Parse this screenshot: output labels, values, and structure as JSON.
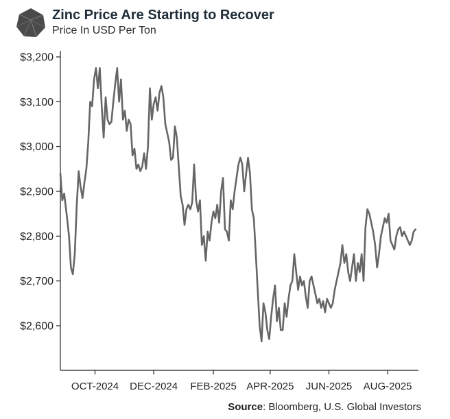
{
  "header": {
    "title": "Zinc Price Are Starting to Recover",
    "subtitle": "Price In USD Per Ton"
  },
  "footer": {
    "source_label": "Source",
    "source_text": ": Bloomberg, U.S. Global Investors"
  },
  "colors": {
    "line": "#666666",
    "axis": "#222222",
    "text": "#222222",
    "title": "#1f2d3a",
    "logo": "#4a4a4a"
  },
  "chart_data": {
    "type": "line",
    "title": "Zinc Price Are Starting to Recover",
    "subtitle": "Price In USD Per Ton",
    "xlabel": "",
    "ylabel": "",
    "ylim": [
      2500,
      3200
    ],
    "xlim": [
      "2024-08-26",
      "2025-09-02"
    ],
    "grid": false,
    "legend": "none",
    "y_ticks": [
      {
        "value": 3200,
        "label": "$3,200"
      },
      {
        "value": 3100,
        "label": "$3,100"
      },
      {
        "value": 3000,
        "label": "$3,000"
      },
      {
        "value": 2900,
        "label": "$2,900"
      },
      {
        "value": 2800,
        "label": "$2,800"
      },
      {
        "value": 2700,
        "label": "$2,700"
      },
      {
        "value": 2600,
        "label": "$2,600"
      }
    ],
    "x_ticks": [
      {
        "date": "2024-10-01",
        "label": "OCT-2024"
      },
      {
        "date": "2024-12-01",
        "label": "DEC-2024"
      },
      {
        "date": "2025-02-01",
        "label": "FEB-2025"
      },
      {
        "date": "2025-04-01",
        "label": "APR-2025"
      },
      {
        "date": "2025-06-01",
        "label": "JUN-2025"
      },
      {
        "date": "2025-08-01",
        "label": "AUG-2025"
      }
    ],
    "series": [
      {
        "name": "",
        "x": [
          "2024-08-26",
          "2024-08-28",
          "2024-08-30",
          "2024-09-02",
          "2024-09-04",
          "2024-09-06",
          "2024-09-08",
          "2024-09-10",
          "2024-09-12",
          "2024-09-14",
          "2024-09-16",
          "2024-09-18",
          "2024-09-20",
          "2024-09-22",
          "2024-09-24",
          "2024-09-26",
          "2024-09-28",
          "2024-09-30",
          "2024-10-02",
          "2024-10-04",
          "2024-10-06",
          "2024-10-08",
          "2024-10-10",
          "2024-10-12",
          "2024-10-14",
          "2024-10-16",
          "2024-10-18",
          "2024-10-20",
          "2024-10-22",
          "2024-10-24",
          "2024-10-26",
          "2024-10-28",
          "2024-10-30",
          "2024-11-01",
          "2024-11-03",
          "2024-11-05",
          "2024-11-07",
          "2024-11-09",
          "2024-11-11",
          "2024-11-13",
          "2024-11-15",
          "2024-11-17",
          "2024-11-19",
          "2024-11-21",
          "2024-11-23",
          "2024-11-25",
          "2024-11-27",
          "2024-11-29",
          "2024-12-01",
          "2024-12-03",
          "2024-12-05",
          "2024-12-07",
          "2024-12-09",
          "2024-12-11",
          "2024-12-13",
          "2024-12-15",
          "2024-12-17",
          "2024-12-19",
          "2024-12-21",
          "2024-12-23",
          "2024-12-25",
          "2024-12-27",
          "2024-12-29",
          "2024-12-31",
          "2025-01-02",
          "2025-01-04",
          "2025-01-06",
          "2025-01-08",
          "2025-01-10",
          "2025-01-12",
          "2025-01-14",
          "2025-01-16",
          "2025-01-18",
          "2025-01-20",
          "2025-01-22",
          "2025-01-24",
          "2025-01-26",
          "2025-01-28",
          "2025-01-30",
          "2025-02-01",
          "2025-02-03",
          "2025-02-05",
          "2025-02-07",
          "2025-02-09",
          "2025-02-11",
          "2025-02-13",
          "2025-02-15",
          "2025-02-17",
          "2025-02-19",
          "2025-02-21",
          "2025-02-23",
          "2025-02-25",
          "2025-02-27",
          "2025-03-01",
          "2025-03-03",
          "2025-03-05",
          "2025-03-07",
          "2025-03-09",
          "2025-03-11",
          "2025-03-13",
          "2025-03-15",
          "2025-03-17",
          "2025-03-19",
          "2025-03-21",
          "2025-03-23",
          "2025-03-25",
          "2025-03-27",
          "2025-03-29",
          "2025-03-31",
          "2025-04-02",
          "2025-04-04",
          "2025-04-06",
          "2025-04-08",
          "2025-04-10",
          "2025-04-12",
          "2025-04-14",
          "2025-04-16",
          "2025-04-18",
          "2025-04-20",
          "2025-04-22",
          "2025-04-24",
          "2025-04-26",
          "2025-04-28",
          "2025-04-30",
          "2025-05-02",
          "2025-05-04",
          "2025-05-06",
          "2025-05-08",
          "2025-05-10",
          "2025-05-12",
          "2025-05-14",
          "2025-05-16",
          "2025-05-18",
          "2025-05-20",
          "2025-05-22",
          "2025-05-24",
          "2025-05-26",
          "2025-05-28",
          "2025-05-30",
          "2025-06-01",
          "2025-06-03",
          "2025-06-05",
          "2025-06-07",
          "2025-06-09",
          "2025-06-11",
          "2025-06-13",
          "2025-06-15",
          "2025-06-17",
          "2025-06-19",
          "2025-06-21",
          "2025-06-23",
          "2025-06-25",
          "2025-06-27",
          "2025-06-29",
          "2025-07-01",
          "2025-07-03",
          "2025-07-05",
          "2025-07-07",
          "2025-07-09",
          "2025-07-11",
          "2025-07-13",
          "2025-07-15",
          "2025-07-17",
          "2025-07-19",
          "2025-07-21",
          "2025-07-23",
          "2025-07-25",
          "2025-07-27",
          "2025-07-29",
          "2025-07-31",
          "2025-08-02",
          "2025-08-04",
          "2025-08-06",
          "2025-08-08",
          "2025-08-10",
          "2025-08-12",
          "2025-08-14",
          "2025-08-16",
          "2025-08-18",
          "2025-08-20",
          "2025-08-22",
          "2025-08-24",
          "2025-08-26",
          "2025-08-28",
          "2025-08-30"
        ],
        "values": [
          2940,
          2880,
          2895,
          2840,
          2800,
          2730,
          2715,
          2760,
          2870,
          2945,
          2910,
          2885,
          2920,
          2950,
          3010,
          3100,
          3090,
          3150,
          3175,
          3130,
          3175,
          3090,
          3020,
          3110,
          3060,
          3050,
          3055,
          3100,
          3140,
          3175,
          3100,
          3150,
          3060,
          3080,
          3035,
          3060,
          3050,
          2980,
          2995,
          2950,
          2960,
          2945,
          2955,
          2985,
          2950,
          3000,
          3130,
          3060,
          3095,
          3110,
          3080,
          3120,
          3135,
          3110,
          3050,
          3030,
          3010,
          2970,
          2975,
          3045,
          3020,
          2955,
          2890,
          2870,
          2825,
          2860,
          2870,
          2860,
          2875,
          2960,
          2880,
          2855,
          2880,
          2780,
          2800,
          2745,
          2810,
          2790,
          2830,
          2855,
          2840,
          2870,
          2830,
          2900,
          2930,
          2815,
          2810,
          2790,
          2880,
          2860,
          2900,
          2930,
          2960,
          2975,
          2960,
          2900,
          2940,
          2975,
          2940,
          2860,
          2840,
          2760,
          2680,
          2600,
          2565,
          2650,
          2630,
          2590,
          2570,
          2620,
          2660,
          2690,
          2610,
          2640,
          2590,
          2590,
          2650,
          2620,
          2660,
          2690,
          2700,
          2760,
          2720,
          2680,
          2710,
          2690,
          2700,
          2665,
          2640,
          2700,
          2710,
          2690,
          2670,
          2650,
          2660,
          2640,
          2655,
          2630,
          2660,
          2650,
          2640,
          2650,
          2680,
          2700,
          2720,
          2740,
          2780,
          2740,
          2760,
          2720,
          2700,
          2730,
          2760,
          2700,
          2740,
          2720,
          2760,
          2700,
          2820,
          2860,
          2850,
          2830,
          2810,
          2780,
          2730,
          2760,
          2800,
          2820,
          2840,
          2830,
          2850,
          2790,
          2780,
          2770,
          2800,
          2815,
          2820,
          2800,
          2810,
          2800,
          2790,
          2780,
          2790,
          2810,
          2815
        ]
      }
    ]
  }
}
